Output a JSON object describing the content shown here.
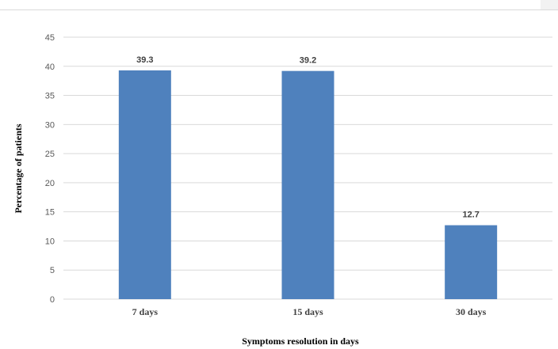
{
  "chart_data": {
    "type": "bar",
    "categories": [
      "7 days",
      "15 days",
      "30 days"
    ],
    "values": [
      39.3,
      39.2,
      12.7
    ],
    "data_labels": [
      "39.3",
      "39.2",
      "12.7"
    ],
    "title": "",
    "xlabel": "Symptoms resolution in days",
    "ylabel": "Percentage of patients",
    "ylim": [
      0,
      45
    ],
    "yticks": [
      0,
      5,
      10,
      15,
      20,
      25,
      30,
      35,
      40,
      45
    ],
    "grid": true,
    "bar_color": "#4f81bd",
    "grid_color": "#d9d9d9"
  }
}
